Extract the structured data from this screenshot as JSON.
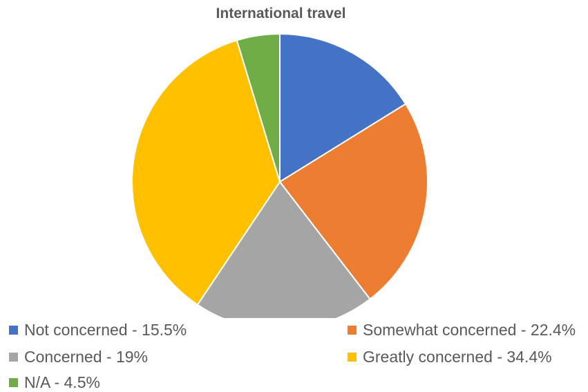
{
  "chart_data": {
    "type": "pie",
    "title": "International travel",
    "categories": [
      "Not concerned",
      "Somewhat concerned",
      "Concerned",
      "Greatly concerned",
      "N/A"
    ],
    "values": [
      15.5,
      22.4,
      19,
      34.4,
      4.5
    ],
    "colors": [
      "#4472C4",
      "#ED7D31",
      "#A5A5A5",
      "#FFC000",
      "#70AD47"
    ],
    "legend": {
      "position": "bottom",
      "labels": [
        "Not concerned - 15.5%",
        "Somewhat concerned - 22.4%",
        "Concerned - 19%",
        "Greatly concerned - 34.4%",
        "N/A - 4.5%"
      ]
    }
  }
}
